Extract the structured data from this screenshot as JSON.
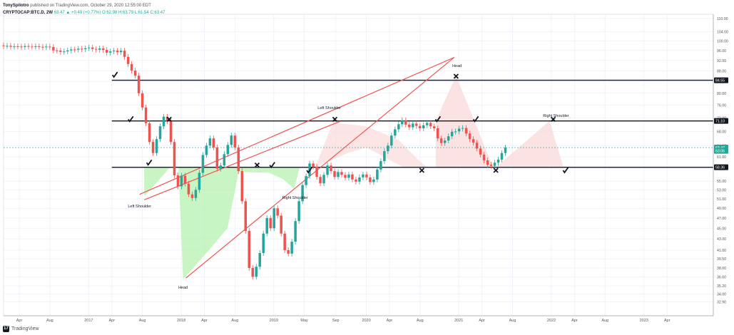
{
  "header": {
    "author": "TonySpilotro",
    "published": "published on TradingView.com, October 29, 2020 12:55:00 EDT",
    "symbol": "CRYPTOCAP:BTC.D, 2W",
    "change": "63.47 ▲ +0.49 (+0.77%)",
    "ohlc": "O:62.98 H:63.79 L:61.54 C:63.47"
  },
  "footer": {
    "brand": "TradingView",
    "logo_text": "17"
  },
  "chart_data": {
    "type": "candlestick",
    "y_axis": {
      "min": 31.0,
      "max": 112.0,
      "scale": "log",
      "side": "right",
      "ticks": [
        "110.00",
        "104.00",
        "100.00",
        "96.00",
        "92.00",
        "88.00",
        "84.00",
        "80.00",
        "76.00",
        "72.00",
        "68.00",
        "64.00",
        "61.00",
        "58.00",
        "55.00",
        "53.00",
        "51.00",
        "49.00",
        "47.00",
        "45.00",
        "43.00",
        "41.00",
        "39.50",
        "38.00",
        "36.60",
        "35.20",
        "34.00",
        "32.90"
      ]
    },
    "x_axis": {
      "min": 2016.08,
      "max": 2023.75,
      "ticks": [
        {
          "label": "Apr",
          "t": 2016.25
        },
        {
          "label": "Aug",
          "t": 2016.58
        },
        {
          "label": "2017",
          "t": 2017.0
        },
        {
          "label": "Apr",
          "t": 2017.25
        },
        {
          "label": "Aug",
          "t": 2017.58
        },
        {
          "label": "2018",
          "t": 2018.0
        },
        {
          "label": "Apr",
          "t": 2018.25
        },
        {
          "label": "Aug",
          "t": 2018.58
        },
        {
          "label": "2019",
          "t": 2019.0
        },
        {
          "label": "May",
          "t": 2019.33
        },
        {
          "label": "Sep",
          "t": 2019.67
        },
        {
          "label": "2020",
          "t": 2020.0
        },
        {
          "label": "Apr",
          "t": 2020.25
        },
        {
          "label": "Aug",
          "t": 2020.58
        },
        {
          "label": "2021",
          "t": 2021.0
        },
        {
          "label": "Apr",
          "t": 2021.25
        },
        {
          "label": "Aug",
          "t": 2021.58
        },
        {
          "label": "2022",
          "t": 2022.0
        },
        {
          "label": "Apr",
          "t": 2022.25
        },
        {
          "label": "Aug",
          "t": 2022.58
        },
        {
          "label": "2023",
          "t": 2023.0
        },
        {
          "label": "Apr",
          "t": 2023.25
        }
      ]
    },
    "price_labels": [
      {
        "text": "84.55",
        "value": 84.55,
        "color": "#131722"
      },
      {
        "text": "71.10",
        "value": 71.1,
        "color": "#131722"
      },
      {
        "text": "63.47",
        "value": 63.47,
        "color": "#26a69a"
      },
      {
        "text": "63:06",
        "value": 62.6,
        "color": "#26a69a"
      },
      {
        "text": "58.36",
        "value": 58.36,
        "color": "#131722"
      }
    ],
    "horizontal_lines": [
      84.55,
      71.1,
      58.36
    ],
    "current_price": 63.47,
    "candle_closes": [
      97.8,
      97.9,
      97.5,
      97.7,
      97.6,
      97.4,
      97.8,
      97.6,
      97.5,
      97.7,
      97.5,
      97.3,
      97.6,
      97.4,
      96.0,
      95.9,
      95.4,
      95.6,
      96.0,
      96.4,
      96.3,
      96.7,
      96.5,
      96.9,
      97.2,
      96.6,
      96.3,
      96.8,
      96.2,
      95.1,
      95.6,
      95.9,
      95.3,
      95.9,
      93.4,
      90.6,
      88.1,
      86.2,
      80.0,
      75.3,
      70.4,
      65.0,
      62.0,
      65.8,
      69.5,
      72.4,
      71.0,
      65.0,
      56.4,
      53.8,
      56.3,
      54.4,
      52.0,
      51.2,
      53.0,
      57.0,
      61.5,
      64.0,
      66.0,
      63.5,
      58.0,
      58.8,
      61.7,
      64.2,
      66.8,
      63.5,
      57.4,
      50.5,
      44.5,
      38.0,
      36.6,
      38.2,
      40.5,
      44.0,
      47.0,
      45.0,
      49.0,
      47.5,
      44.0,
      41.0,
      40.4,
      42.5,
      46.4,
      50.5,
      54.1,
      56.2,
      59.3,
      58.5,
      56.0,
      54.5,
      56.5,
      58.8,
      57.4,
      56.0,
      57.2,
      56.5,
      55.8,
      56.6,
      55.4,
      54.9,
      55.9,
      56.6,
      55.9,
      54.8,
      55.4,
      57.8,
      59.9,
      62.5,
      64.0,
      66.8,
      68.6,
      70.1,
      71.3,
      70.0,
      69.2,
      70.3,
      69.6,
      68.9,
      69.8,
      70.5,
      69.5,
      68.9,
      66.0,
      64.7,
      65.4,
      66.6,
      67.9,
      68.0,
      68.8,
      69.0,
      67.4,
      65.8,
      64.8,
      63.2,
      61.6,
      60.1,
      59.0,
      58.7,
      59.5,
      60.3,
      62.0,
      63.47
    ],
    "annotations": [
      {
        "text": "Left Shoulder",
        "t": 2017.55,
        "value": 49.2
      },
      {
        "text": "Head",
        "t": 2018.02,
        "value": 34.8
      },
      {
        "text": "Right Shoulder",
        "t": 2019.23,
        "value": 51.0
      },
      {
        "text": "Left Shoulder",
        "t": 2019.6,
        "value": 74.8
      },
      {
        "text": "Head",
        "t": 2020.98,
        "value": 89.5
      },
      {
        "text": "Right Shoulder",
        "t": 2022.05,
        "value": 72.3
      }
    ]
  }
}
